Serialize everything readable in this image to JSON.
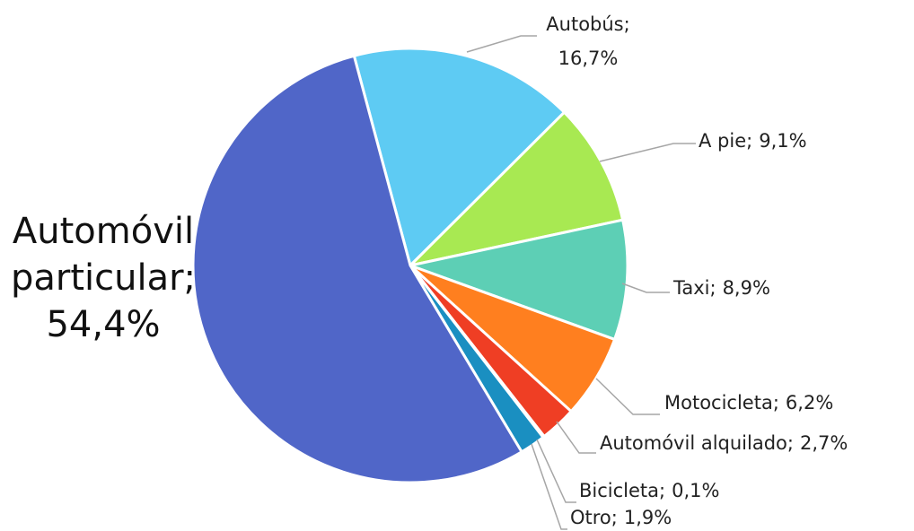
{
  "chart_data": {
    "type": "pie",
    "categories": [
      "Autobús;",
      "A pie;",
      "Taxi;",
      "Motocicleta;",
      "Automóvil alquilado;",
      "Bicicleta;",
      "Otro;",
      "Automóvil particular;"
    ],
    "values": [
      16.7,
      9.1,
      8.9,
      6.2,
      2.7,
      0.1,
      1.9,
      54.4
    ],
    "value_labels": [
      "16,7%",
      "9,1%",
      "8,9%",
      "6,2%",
      "2,7%",
      "0,1%",
      "1,9%",
      "54,4%"
    ],
    "colors": [
      "#5ecbf3",
      "#a8e952",
      "#5dcfb5",
      "#ff7f1f",
      "#ef3e24",
      "#8e5bb5",
      "#1a8fc1",
      "#5066c8"
    ]
  }
}
